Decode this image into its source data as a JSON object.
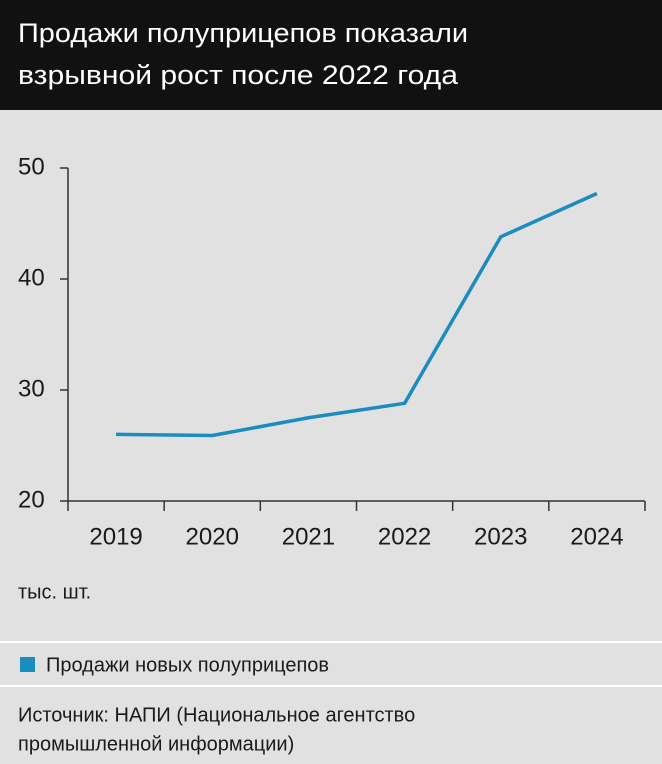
{
  "chart_data": {
    "type": "line",
    "title": [
      "Продажи полуприцепов показали",
      "взрывной рост после 2022 года"
    ],
    "y_unit": "тыс. шт.",
    "categories": [
      "2019",
      "2020",
      "2021",
      "2022",
      "2023",
      "2024"
    ],
    "series": [
      {
        "name": "Продажи новых полуприцепов",
        "color": "#1a8cbf",
        "values": [
          26.0,
          25.9,
          27.5,
          28.8,
          43.8,
          47.7
        ]
      }
    ],
    "ylim": [
      20,
      50
    ],
    "yticks": [
      20,
      30,
      40,
      50
    ],
    "source": [
      "Источник: НАПИ (Национальное агентство",
      "промышленной информации)"
    ]
  }
}
